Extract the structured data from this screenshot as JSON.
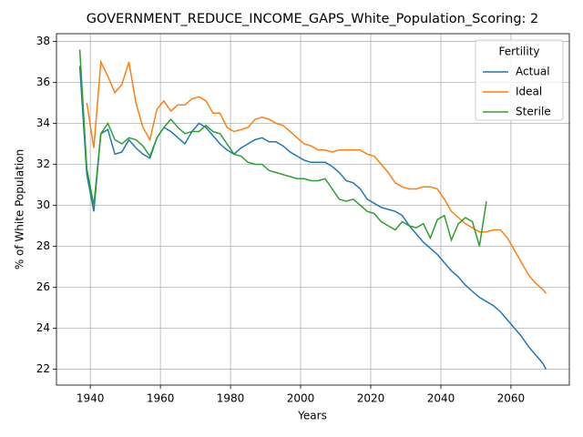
{
  "chart_data": {
    "type": "line",
    "title": "GOVERNMENT_REDUCE_INCOME_GAPS_White_Population_Scoring: 2",
    "x_label": "Years",
    "y_label": "% of White Population",
    "legend_title": "Fertility",
    "legend": "upper right",
    "grid": true,
    "x": [
      1937,
      1939,
      1941,
      1943,
      1945,
      1947,
      1949,
      1951,
      1953,
      1955,
      1957,
      1959,
      1961,
      1963,
      1965,
      1967,
      1969,
      1971,
      1973,
      1975,
      1977,
      1979,
      1981,
      1983,
      1985,
      1987,
      1989,
      1991,
      1993,
      1995,
      1997,
      1999,
      2001,
      2003,
      2005,
      2007,
      2009,
      2011,
      2013,
      2015,
      2017,
      2019,
      2021,
      2023,
      2025,
      2027,
      2029,
      2031,
      2033,
      2035,
      2037,
      2039,
      2041,
      2043,
      2045,
      2047,
      2049,
      2051,
      2053,
      2055,
      2057,
      2059,
      2061,
      2063,
      2065,
      2067,
      2069,
      2070
    ],
    "series": [
      {
        "name": "Actual",
        "color": "#1f77b4",
        "values": [
          36.8,
          31.5,
          29.7,
          33.5,
          33.7,
          32.5,
          32.6,
          33.2,
          32.8,
          32.5,
          32.3,
          33.3,
          33.8,
          33.6,
          33.3,
          33.0,
          33.6,
          34.0,
          33.8,
          33.4,
          33.0,
          32.7,
          32.5,
          32.8,
          33.0,
          33.2,
          33.3,
          33.1,
          33.1,
          32.9,
          32.6,
          32.4,
          32.2,
          32.1,
          32.1,
          32.1,
          31.9,
          31.6,
          31.2,
          31.1,
          30.8,
          30.3,
          30.1,
          29.9,
          29.8,
          29.7,
          29.5,
          29.0,
          28.6,
          28.2,
          27.9,
          27.6,
          27.2,
          26.8,
          26.5,
          26.1,
          25.8,
          25.5,
          25.3,
          25.1,
          24.8,
          24.4,
          24.0,
          23.6,
          23.1,
          22.7,
          22.3,
          22.0
        ]
      },
      {
        "name": "Ideal",
        "color": "#ff7f0e",
        "values": [
          null,
          35.0,
          32.8,
          37.0,
          36.3,
          35.5,
          35.9,
          37.0,
          35.0,
          33.8,
          33.2,
          34.7,
          35.1,
          34.6,
          34.9,
          34.9,
          35.2,
          35.3,
          35.1,
          34.5,
          34.5,
          33.8,
          33.6,
          33.7,
          33.8,
          34.2,
          34.3,
          34.2,
          34.0,
          33.9,
          33.6,
          33.3,
          33.0,
          32.9,
          32.7,
          32.7,
          32.6,
          32.7,
          32.7,
          32.7,
          32.7,
          32.5,
          32.4,
          32.0,
          31.6,
          31.1,
          30.9,
          30.8,
          30.8,
          30.9,
          30.9,
          30.8,
          30.3,
          29.7,
          29.4,
          29.1,
          28.9,
          28.7,
          28.7,
          28.8,
          28.8,
          28.4,
          27.8,
          27.2,
          26.6,
          26.2,
          25.9,
          25.7
        ]
      },
      {
        "name": "Sterile",
        "color": "#2ca02c",
        "values": [
          37.6,
          31.8,
          30.0,
          33.5,
          34.0,
          33.2,
          33.0,
          33.3,
          33.2,
          32.9,
          32.4,
          33.3,
          33.8,
          34.2,
          33.8,
          33.5,
          33.6,
          33.6,
          33.9,
          33.6,
          33.5,
          33.0,
          32.5,
          32.4,
          32.1,
          32.0,
          32.0,
          31.7,
          31.6,
          31.5,
          31.4,
          31.3,
          31.3,
          31.2,
          31.2,
          31.3,
          30.8,
          30.3,
          30.2,
          30.3,
          30.0,
          29.7,
          29.6,
          29.2,
          29.0,
          28.8,
          29.2,
          29.0,
          28.9,
          29.1,
          28.4,
          29.3,
          29.5,
          28.3,
          29.1,
          29.4,
          29.2,
          28.0,
          30.2,
          null,
          null,
          null,
          null,
          null,
          null,
          null,
          null,
          null
        ]
      }
    ],
    "xlim": [
      1930.35,
      2076.65
    ],
    "xticks": [
      1940,
      1960,
      1980,
      2000,
      2020,
      2040,
      2060
    ],
    "ylim": [
      21.22,
      38.38
    ],
    "yticks": [
      22,
      24,
      26,
      28,
      30,
      32,
      34,
      36,
      38
    ]
  }
}
